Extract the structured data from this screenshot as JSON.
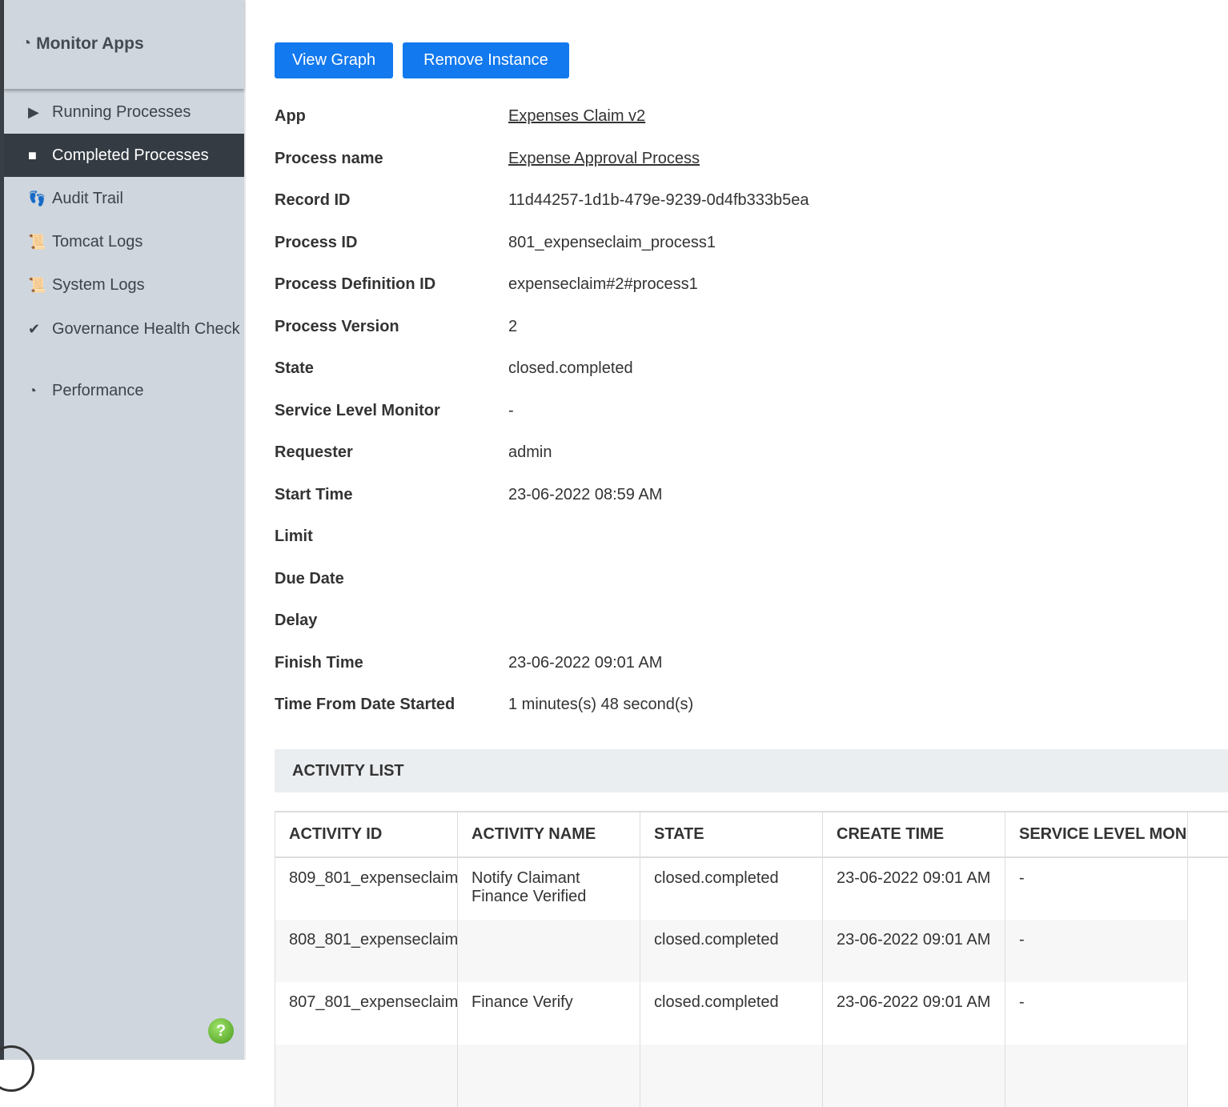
{
  "sidebar": {
    "title": "Monitor Apps",
    "items": [
      {
        "label": "Running Processes",
        "icon": "play-icon"
      },
      {
        "label": "Completed Processes",
        "icon": "stop-icon",
        "active": true
      },
      {
        "label": "Audit Trail",
        "icon": "footprints-icon"
      },
      {
        "label": "Tomcat Logs",
        "icon": "scroll-icon"
      },
      {
        "label": "System Logs",
        "icon": "scroll-icon"
      },
      {
        "label": "Governance Health Check",
        "icon": "check-circle-icon"
      },
      {
        "label": "Performance",
        "icon": "gauge-icon"
      }
    ],
    "help": "?"
  },
  "toolbar": {
    "view_graph": "View Graph",
    "remove_instance": "Remove Instance"
  },
  "details": [
    {
      "label": "App",
      "value": "Expenses Claim v2",
      "link": true
    },
    {
      "label": "Process name",
      "value": "Expense Approval Process",
      "link": true
    },
    {
      "label": "Record ID",
      "value": "11d44257-1d1b-479e-9239-0d4fb333b5ea"
    },
    {
      "label": "Process ID",
      "value": "801_expenseclaim_process1"
    },
    {
      "label": "Process Definition ID",
      "value": "expenseclaim#2#process1"
    },
    {
      "label": "Process Version",
      "value": "2"
    },
    {
      "label": "State",
      "value": "closed.completed"
    },
    {
      "label": "Service Level Monitor",
      "value": "-"
    },
    {
      "label": "Requester",
      "value": "admin"
    },
    {
      "label": "Start Time",
      "value": "23-06-2022 08:59 AM"
    },
    {
      "label": "Limit",
      "value": ""
    },
    {
      "label": "Due Date",
      "value": ""
    },
    {
      "label": "Delay",
      "value": ""
    },
    {
      "label": "Finish Time",
      "value": "23-06-2022 09:01 AM"
    },
    {
      "label": "Time From Date Started",
      "value": "1 minutes(s) 48 second(s)"
    }
  ],
  "activity": {
    "title": "ACTIVITY LIST",
    "columns": [
      "ACTIVITY ID",
      "ACTIVITY NAME",
      "STATE",
      "CREATE TIME",
      "SERVICE LEVEL MON"
    ],
    "rows": [
      [
        "809_801_expenseclaim",
        "Notify Claimant Finance Verified",
        "closed.completed",
        "23-06-2022 09:01 AM",
        "-"
      ],
      [
        "808_801_expenseclaim",
        "",
        "closed.completed",
        "23-06-2022 09:01 AM",
        "-"
      ],
      [
        "807_801_expenseclaim",
        "Finance Verify",
        "closed.completed",
        "23-06-2022 09:01 AM",
        "-"
      ],
      [
        "",
        "",
        "",
        "",
        ""
      ]
    ]
  }
}
